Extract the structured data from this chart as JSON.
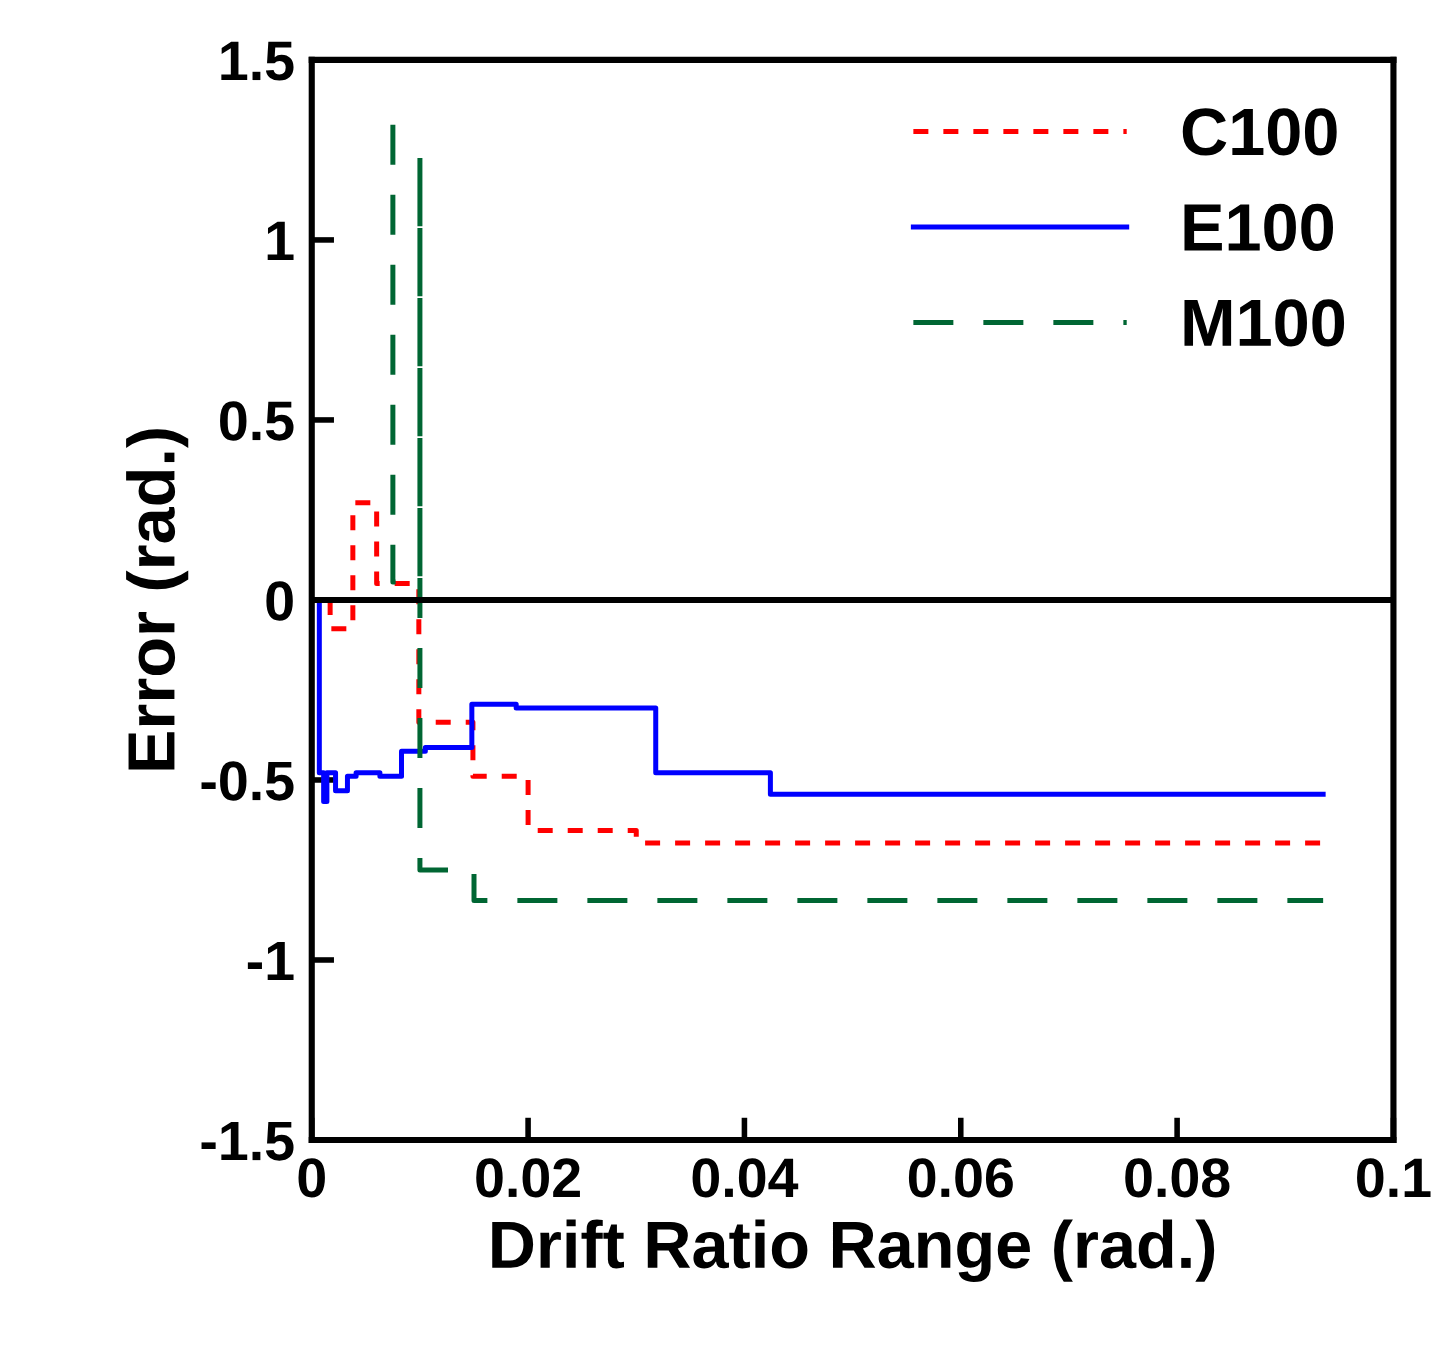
{
  "chart_data": {
    "type": "line",
    "xlabel": "Drift Ratio Range (rad.)",
    "ylabel": "Error (rad.)",
    "xlim": [
      0,
      0.1
    ],
    "ylim": [
      -1.5,
      1.5
    ],
    "xticks": [
      0,
      0.02,
      0.04,
      0.06,
      0.08,
      0.1
    ],
    "yticks": [
      -1.5,
      -1,
      -0.5,
      0,
      0.5,
      1,
      1.5
    ],
    "grid": false,
    "legend": "top right",
    "marker": "none",
    "ref_lines": [
      {
        "axis": "y",
        "value": 0,
        "color": "#000000",
        "line_style": "solid"
      }
    ],
    "series": [
      {
        "name": "C100",
        "type": "step",
        "color": "#ff0000",
        "line_style": "dotted",
        "x": [
          0.0017,
          0.0017,
          0.0038,
          0.006,
          0.0099,
          0.0149,
          0.02,
          0.03,
          0.0935
        ],
        "values": [
          0,
          -0.08,
          0.27,
          0.046,
          -0.34,
          -0.49,
          -0.64,
          -0.675,
          -0.675
        ]
      },
      {
        "name": "E100",
        "type": "step",
        "color": "#0000ff",
        "line_style": "solid",
        "x": [
          0.0007,
          0.0007,
          0.0011,
          0.0014,
          0.0022,
          0.0033,
          0.0041,
          0.0063,
          0.0083,
          0.0105,
          0.0148,
          0.0189,
          0.0318,
          0.0424,
          0.0935
        ],
        "values": [
          0,
          -0.48,
          -0.56,
          -0.48,
          -0.53,
          -0.49,
          -0.48,
          -0.49,
          -0.42,
          -0.41,
          -0.29,
          -0.3,
          -0.48,
          -0.54,
          -0.54
        ]
      },
      {
        "name": "M100",
        "color": "#006633",
        "line_style": "dashed",
        "x": [
          0.0075,
          0.0075,
          0.01,
          0.01,
          0.01,
          0.015,
          0.015,
          0.0935
        ],
        "values": [
          1.32,
          0.05,
          0.05,
          1.23,
          -0.75,
          -0.75,
          -0.835,
          -0.835
        ]
      }
    ]
  }
}
